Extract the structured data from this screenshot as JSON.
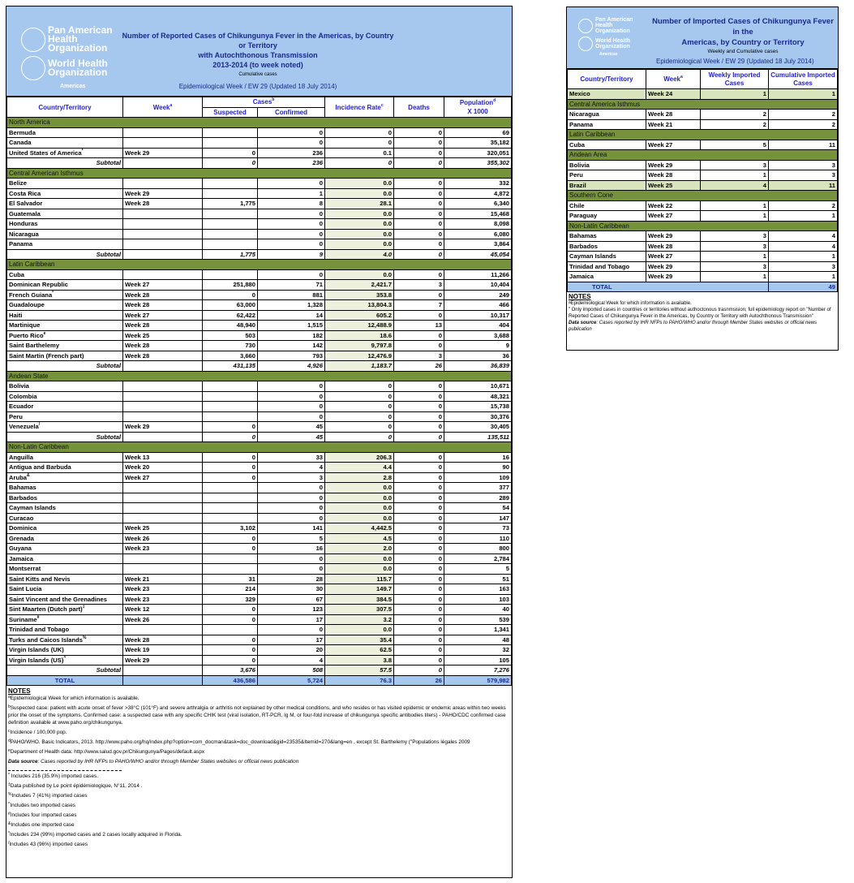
{
  "main": {
    "logo": {
      "line1": "Pan American",
      "line2": "Health",
      "line3": "Organization",
      "line4": "World Health",
      "line5": "Organization",
      "line6": "Americas"
    },
    "title_line1": "Number of Reported  Cases of Chikungunya Fever  in the Americas, by Country or Territory",
    "title_line2": "with Autochthonous Transmission",
    "title_line3": "2013-2014 (to week noted)",
    "subtitle": "Cumulative cases",
    "epi_week": "Epidemiological Week / EW 29 (Updated 18 July 2014)",
    "headers": {
      "country": "Country/Territory",
      "week": "Week",
      "week_sup": "a",
      "cases": "Cases",
      "cases_sup": "b",
      "suspected": "Suspected",
      "confirmed": "Confirmed",
      "incidence": "Incidence Rate",
      "incidence_sup": "c",
      "deaths": "Deaths",
      "population": "Population",
      "population_sup": "d",
      "population2": "X 1000"
    },
    "sections": [
      {
        "name": "North America",
        "shade": false,
        "rows": [
          [
            "Bermuda",
            "",
            "",
            "",
            "0",
            "0",
            "0",
            "69"
          ],
          [
            "Canada",
            "",
            "",
            "",
            "0",
            "0",
            "0",
            "35,182"
          ],
          [
            "United States of America",
            "*",
            "Week 29",
            "0",
            "236",
            "0.1",
            "0",
            "320,051"
          ]
        ],
        "subtotal": [
          "Subtotal",
          "",
          "0",
          "236",
          "0",
          "0",
          "355,302"
        ]
      },
      {
        "name": "Central American Isthmus",
        "shade": true,
        "rows": [
          [
            "Belize",
            "",
            "",
            "",
            "0",
            "0.0",
            "0",
            "332"
          ],
          [
            "Costa Rica",
            "",
            "Week 29",
            "",
            "1",
            "0.0",
            "0",
            "4,872"
          ],
          [
            "El Salvador",
            "",
            "Week 28",
            "1,775",
            "8",
            "28.1",
            "0",
            "6,340"
          ],
          [
            "Guatemala",
            "",
            "",
            "",
            "0",
            "0.0",
            "0",
            "15,468"
          ],
          [
            "Honduras",
            "",
            "",
            "",
            "0",
            "0.0",
            "0",
            "8,098"
          ],
          [
            "Nicaragua",
            "",
            "",
            "",
            "0",
            "0.0",
            "0",
            "6,080"
          ],
          [
            "Panama",
            "",
            "",
            "",
            "0",
            "0.0",
            "0",
            "3,864"
          ]
        ],
        "subtotal": [
          "Subtotal",
          "",
          "1,775",
          "9",
          "4.0",
          "0",
          "45,054"
        ]
      },
      {
        "name": "Latin Caribbean",
        "shade": true,
        "rows": [
          [
            "Cuba",
            "",
            "",
            "",
            "0",
            "0.0",
            "0",
            "11,266"
          ],
          [
            "Dominican Republic",
            "",
            "Week 27",
            "251,880",
            "71",
            "2,421.7",
            "3",
            "10,404"
          ],
          [
            "French Guiana",
            "*",
            "Week 28",
            "0",
            "881",
            "353.8",
            "0",
            "249"
          ],
          [
            "Guadaloupe",
            "",
            "Week 28",
            "63,000",
            "1,328",
            "13,804.3",
            "7",
            "466"
          ],
          [
            "Haiti",
            "",
            "Week 27",
            "62,422",
            "14",
            "605.2",
            "0",
            "10,317"
          ],
          [
            "Martinique",
            "",
            "Week 28",
            "48,940",
            "1,515",
            "12,488.9",
            "13",
            "404"
          ],
          [
            "Puerto Rico",
            "e",
            "Week 25",
            "503",
            "182",
            "18.6",
            "0",
            "3,688"
          ],
          [
            "Saint Barthelemy",
            "",
            "Week 28",
            "730",
            "142",
            "9,797.8",
            "0",
            "9"
          ],
          [
            "Saint Martin (French part)",
            "",
            "Week 28",
            "3,660",
            "793",
            "12,476.9",
            "3",
            "36"
          ]
        ],
        "subtotal": [
          "Subtotal",
          "",
          "431,135",
          "4,926",
          "1,183.7",
          "26",
          "36,839"
        ]
      },
      {
        "name": "Andean State",
        "shade": false,
        "rows": [
          [
            "Bolivia",
            "",
            "",
            "",
            "0",
            "0",
            "0",
            "10,671"
          ],
          [
            "Colombia",
            "",
            "",
            "",
            "0",
            "0",
            "0",
            "48,321"
          ],
          [
            "Ecuador",
            "",
            "",
            "",
            "0",
            "0",
            "0",
            "15,738"
          ],
          [
            "Peru",
            "",
            "",
            "",
            "0",
            "0",
            "0",
            "30,376"
          ],
          [
            "Venezuela",
            "/",
            "Week 29",
            "0",
            "45",
            "0",
            "0",
            "30,405"
          ]
        ],
        "subtotal": [
          "Subtotal",
          "",
          "0",
          "45",
          "0",
          "0",
          "135,511"
        ]
      },
      {
        "name": "Non-Latin Caribbean",
        "shade": true,
        "rows": [
          [
            "Anguilla",
            "",
            "Week 13",
            "0",
            "33",
            "206.3",
            "0",
            "16"
          ],
          [
            "Antigua and Barbuda",
            "",
            "Week 20",
            "0",
            "4",
            "4.4",
            "0",
            "90"
          ],
          [
            "Aruba",
            "&",
            "Week 27",
            "0",
            "3",
            "2.8",
            "0",
            "109"
          ],
          [
            "Bahamas",
            "",
            "",
            "",
            "0",
            "0.0",
            "0",
            "377"
          ],
          [
            "Barbados",
            "",
            "",
            "",
            "0",
            "0.0",
            "0",
            "289"
          ],
          [
            "Cayman Islands",
            "",
            "",
            "",
            "0",
            "0.0",
            "0",
            "54"
          ],
          [
            "Curacao",
            "",
            "",
            "",
            "0",
            "0.0",
            "0",
            "147"
          ],
          [
            "Dominica",
            "",
            "Week 25",
            "3,102",
            "141",
            "4,442.5",
            "0",
            "73"
          ],
          [
            "Grenada",
            "",
            "Week 26",
            "0",
            "5",
            "4.5",
            "0",
            "110"
          ],
          [
            "Guyana",
            "",
            "Week 23",
            "0",
            "16",
            "2.0",
            "0",
            "800"
          ],
          [
            "Jamaica",
            "",
            "",
            "",
            "0",
            "0.0",
            "0",
            "2,784"
          ],
          [
            "Montserrat",
            "",
            "",
            "",
            "0",
            "0.0",
            "0",
            "5"
          ],
          [
            "Saint Kitts and Nevis",
            "",
            "Week 21",
            "31",
            "28",
            "115.7",
            "0",
            "51"
          ],
          [
            "Saint Lucia",
            "",
            "Week 23",
            "214",
            "30",
            "149.7",
            "0",
            "163"
          ],
          [
            "Saint Vincent and the Grenadines",
            "",
            "Week 23",
            "329",
            "67",
            "384.5",
            "0",
            "103"
          ],
          [
            "Sint Maarten (Dutch part)",
            "‡",
            "Week 12",
            "0",
            "123",
            "307.5",
            "0",
            "40"
          ],
          [
            "Suriname",
            "#",
            "Week 26",
            "0",
            "17",
            "3.2",
            "0",
            "539"
          ],
          [
            "Trinidad and Tobago",
            "",
            "",
            "",
            "0",
            "0.0",
            "0",
            "1,341"
          ],
          [
            "Turks and Caicos Islands",
            "%",
            "Week 28",
            "0",
            "17",
            "35.4",
            "0",
            "48"
          ],
          [
            "Virgin Islands (UK)",
            "",
            "Week 19",
            "0",
            "20",
            "62.5",
            "0",
            "32"
          ],
          [
            "Virgin Islands (US)",
            "^",
            "Week 29",
            "0",
            "4",
            "3.8",
            "0",
            "105"
          ]
        ],
        "subtotal": [
          "Subtotal",
          "",
          "3,676",
          "508",
          "57.5",
          "0",
          "7,276"
        ]
      }
    ],
    "total": [
      "TOTAL",
      "",
      "436,586",
      "5,724",
      "76.3",
      "26",
      "579,982"
    ],
    "notes": {
      "heading": "NOTES",
      "items": [
        {
          "mark": "a",
          "text": "Epidemiological Week for which information is available."
        },
        {
          "mark": "b",
          "text": "Suspected case: patient with acute onset of fever >38°C (101°F) and severe arthralgia or arthritis not explained by other medical conditions, and who resides or has visited epidemic or endemic areas within two weeks prior the onset of the symptoms. Confirmed case: a suspected case with any specific CHIK test (viral isolation, RT-PCR, Ig M, or four-fold increase of chikungunya specific antibodies titers) - PAHO/CDC  confirmed case definition available at www.paho.org/chikungunya."
        },
        {
          "mark": "c",
          "text": "Incidence / 100,000 pop."
        },
        {
          "mark": "d",
          "text": "PAHO/WHO. Basic Indicators, 2013. http://www.paho.org/hq/index.php?option=com_docman&task=doc_download&gid=23535&Itemid=270&lang=en , except St. Barthelemy (\"Populations légales 2009"
        },
        {
          "mark": "e",
          "text": "Department of Health data: http://www.salud.gov.pr/Chikungunya/Pages/default.aspx"
        }
      ],
      "source_label": "Data source",
      "source_text": ": Cases reported by IHR NFPs to PAHO/WHO and/or through Member States websites or official news publication",
      "footnotes": [
        {
          "mark": "*",
          "text": " Includes 216 (35.9%) imported cases."
        },
        {
          "mark": "‡",
          "text": "Data published by Le point épidémiologique, N°11, 2014 ."
        },
        {
          "mark": "%",
          "text": "Includes 7 (41%) imported cases"
        },
        {
          "mark": "^",
          "text": "Includes two imported cases"
        },
        {
          "mark": "#",
          "text": "Includes four imported cases"
        },
        {
          "mark": "&",
          "text": "Includes one imported case"
        },
        {
          "mark": "*",
          "text": "Includes 234 (99%) imported cases and 2 cases locally adquired in Florida."
        },
        {
          "mark": "/",
          "text": "Includes 43 (96%) imported cases"
        }
      ]
    }
  },
  "side": {
    "title_line1": "Number of Imported Cases of Chikungunya Fever in the",
    "title_line2": "Americas, by Country or Territory",
    "subtitle": "Weekly and Cumulative cases",
    "epi_week": "Epidemiological Week / EW 29 (Updated 18 July 2014)",
    "headers": {
      "country": "Country/Territory",
      "week": "Week",
      "week_sup": "a",
      "weekly": "Weekly Imported Cases",
      "cumulative": "Cumulative Imported Cases"
    },
    "blocks": [
      {
        "type": "row",
        "highlight": true,
        "cells": [
          "Mexico",
          "Week 24",
          "1",
          "1"
        ]
      },
      {
        "type": "section",
        "name": "Central America Isthmus"
      },
      {
        "type": "row",
        "cells": [
          "Nicaragua",
          "Week 28",
          "2",
          "2"
        ]
      },
      {
        "type": "row",
        "cells": [
          "Panama",
          "Week 21",
          "2",
          "2"
        ]
      },
      {
        "type": "section",
        "name": "Latin Caribbean"
      },
      {
        "type": "row",
        "cells": [
          "Cuba",
          "Week 27",
          "5",
          "11"
        ]
      },
      {
        "type": "section",
        "name": "Andean Area"
      },
      {
        "type": "row",
        "cells": [
          "Bolivia",
          "Week 29",
          "3",
          "3"
        ]
      },
      {
        "type": "row",
        "cells": [
          "Peru",
          "Week 28",
          "1",
          "3"
        ]
      },
      {
        "type": "row",
        "highlight": true,
        "cells": [
          "Brazil",
          "Week 25",
          "4",
          "11"
        ]
      },
      {
        "type": "section",
        "name": "Southern Cone"
      },
      {
        "type": "row",
        "cells": [
          "Chile",
          "Week 22",
          "1",
          "2"
        ]
      },
      {
        "type": "row",
        "cells": [
          "Paraguay",
          "Week 27",
          "1",
          "1"
        ]
      },
      {
        "type": "section",
        "name": "Non-Latin Caribbean"
      },
      {
        "type": "row",
        "cells": [
          "Bahamas",
          "Week 29",
          "3",
          "4"
        ]
      },
      {
        "type": "row",
        "cells": [
          "Barbados",
          "Week 28",
          "3",
          "4"
        ]
      },
      {
        "type": "row",
        "cells": [
          "Cayman Islands",
          "Week 27",
          "1",
          "1"
        ]
      },
      {
        "type": "row",
        "cells": [
          "Trinidad and Tobago",
          "Week 29",
          "3",
          "3"
        ]
      },
      {
        "type": "row",
        "cells": [
          "Jamaica",
          "Week 29",
          "1",
          "1"
        ]
      }
    ],
    "total_label": "TOTAL",
    "total_value": "49",
    "notes": {
      "heading": "NOTES",
      "items": [
        {
          "mark": "a",
          "text": "Epidemiological Week for which information is available."
        },
        {
          "mark": "*",
          "text": " Only imported cases in countries or territories without authoctonous trasnmsision; full epidemiology report on \"Number of Reported Cases of Chikungunya Fever in the Americas, by Country or Territory with Autochthonous Transmission\""
        }
      ],
      "source_label": "Data source",
      "source_text": ": Cases reported by IHR NFPs to PAHO/WHO and/or through Member States websites or official news publication"
    }
  },
  "colors": {
    "banner": "#a6c8ef",
    "section": "#76923c",
    "header_text": "#2222cc",
    "highlight": "#d8e4bc",
    "incidence_shade": "#eef0de"
  }
}
